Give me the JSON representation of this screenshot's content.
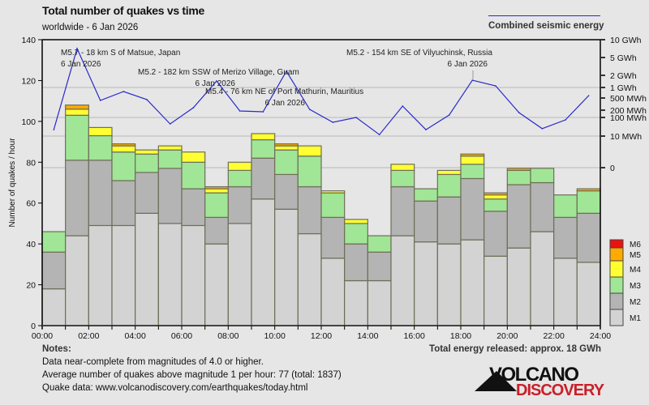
{
  "header": {
    "title": "Total number of quakes vs time",
    "subtitle": "worldwide -  6 Jan 2026",
    "energy_legend": "Combined seismic energy"
  },
  "footer": {
    "notes_heading": "Notes:",
    "notes": [
      "Data near-complete from magnitudes of 4.0 or higher.",
      "Average number of quakes above magnitude 1 per hour: 77 (total: 1837)",
      "Quake data: www.volcanodiscovery.com/earthquakes/today.html"
    ],
    "total_energy": "Total energy released: approx. 18 GWh",
    "logo_top": "VOLCANO",
    "logo_bottom": "DISCOVERY"
  },
  "chart_data": {
    "type": "bar",
    "stacked": true,
    "title": "Total number of quakes vs time",
    "xlabel": "",
    "ylabel": "Number of quakes / hour",
    "ylim": [
      0,
      140
    ],
    "yticks": [
      0,
      20,
      40,
      60,
      80,
      100,
      120,
      140
    ],
    "xtick_labels": [
      "00:00",
      "02:00",
      "04:00",
      "06:00",
      "08:00",
      "10:00",
      "12:00",
      "14:00",
      "16:00",
      "18:00",
      "20:00",
      "22:00",
      "24:00"
    ],
    "categories": [
      "00",
      "01",
      "02",
      "03",
      "04",
      "05",
      "06",
      "07",
      "08",
      "09",
      "10",
      "11",
      "12",
      "13",
      "14",
      "15",
      "16",
      "17",
      "18",
      "19",
      "20",
      "21",
      "22",
      "23"
    ],
    "series": [
      {
        "name": "M1",
        "color": "#d3d3d3",
        "values": [
          18,
          44,
          49,
          49,
          55,
          50,
          49,
          40,
          50,
          62,
          57,
          45,
          33,
          22,
          22,
          44,
          41,
          40,
          42,
          34,
          38,
          46,
          33,
          31
        ]
      },
      {
        "name": "M2",
        "color": "#b4b4b4",
        "values": [
          18,
          37,
          32,
          22,
          20,
          27,
          18,
          13,
          18,
          20,
          17,
          23,
          20,
          18,
          14,
          24,
          20,
          23,
          30,
          22,
          31,
          24,
          20,
          24
        ]
      },
      {
        "name": "M3",
        "color": "#a0e696",
        "values": [
          10,
          22,
          12,
          14,
          9,
          9,
          13,
          12,
          8,
          9,
          12,
          15,
          12,
          10,
          8,
          8,
          6,
          11,
          7,
          6,
          7,
          7,
          11,
          11
        ]
      },
      {
        "name": "M4",
        "color": "#ffff32",
        "values": [
          0,
          3,
          4,
          3,
          2,
          2,
          5,
          2,
          4,
          3,
          2,
          5,
          1,
          2,
          0,
          3,
          0,
          2,
          4,
          2,
          0,
          0,
          0,
          0
        ]
      },
      {
        "name": "M5",
        "color": "#ffaa00",
        "values": [
          0,
          2,
          0,
          1,
          0,
          0,
          0,
          1,
          0,
          0,
          1,
          0,
          0,
          0,
          0,
          0,
          0,
          0,
          1,
          1,
          1,
          0,
          0,
          1
        ]
      },
      {
        "name": "M6",
        "color": "#ee1111",
        "values": [
          0,
          0,
          0,
          0,
          0,
          0,
          0,
          0,
          0,
          0,
          0,
          0,
          0,
          0,
          0,
          0,
          0,
          0,
          0,
          0,
          0,
          0,
          0,
          0
        ]
      }
    ],
    "energy": {
      "name": "Combined seismic energy",
      "unit": "MWh",
      "color": "#2a2acc",
      "values": [
        22,
        7100,
        417,
        768,
        444,
        45,
        240,
        1450,
        185,
        171,
        2470,
        213,
        55,
        100,
        12,
        272,
        22,
        126,
        1516,
        1097,
        159,
        25,
        74,
        586
      ],
      "axis_ticks": [
        {
          "label": "0",
          "value": 0
        },
        {
          "label": "10 MWh",
          "value": 10
        },
        {
          "label": "100 MWh",
          "value": 100
        },
        {
          "label": "200 MWh",
          "value": 200
        },
        {
          "label": "500 MWh",
          "value": 500
        },
        {
          "label": "1 GWh",
          "value": 1000
        },
        {
          "label": "2 GWh",
          "value": 2000
        },
        {
          "label": "5 GWh",
          "value": 5000
        },
        {
          "label": "10 GWh",
          "value": 10000
        }
      ]
    },
    "annotations": [
      {
        "text": "M5.7 - 18 km S of Matsue, Japan",
        "date": "6 Jan 2026",
        "hour": 1
      },
      {
        "text": "M5.2 - 182 km SSW of Merizo Village, Guam",
        "date": "6 Jan 2026",
        "hour": 7
      },
      {
        "text": "M5.4 - 76 km NE of Port Mathurin, Mauritius",
        "date": "6 Jan 2026",
        "hour": 10
      },
      {
        "text": "M5.2 - 154 km SE of Vilyuchinsk, Russia",
        "date": "6 Jan 2026",
        "hour": 18
      }
    ],
    "legend": [
      "M6",
      "M5",
      "M4",
      "M3",
      "M2",
      "M1"
    ],
    "legend_placement": "right"
  }
}
